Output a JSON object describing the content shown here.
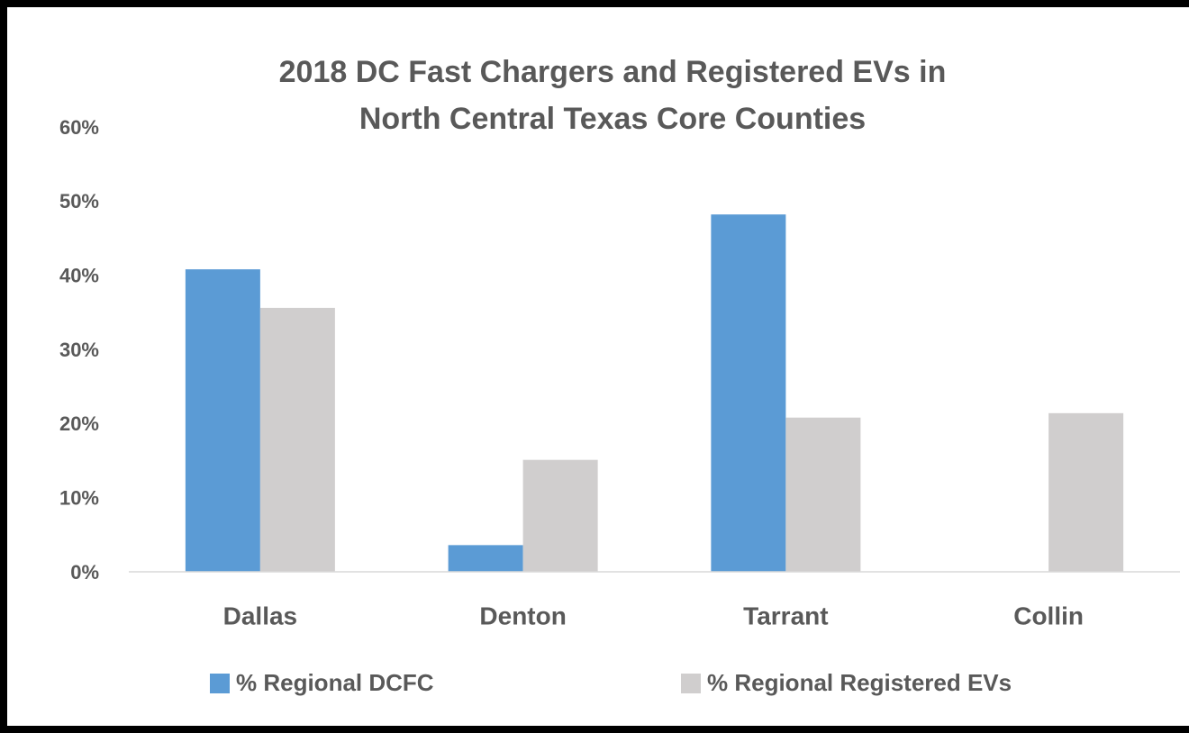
{
  "chart_data": {
    "type": "bar",
    "title": [
      "2018 DC Fast Chargers and Registered EVs in",
      "North Central Texas Core Counties"
    ],
    "categories": [
      "Dallas",
      "Denton",
      "Tarrant",
      "Collin"
    ],
    "series": [
      {
        "name": "% Regional DCFC",
        "color": "#5b9bd5",
        "values": [
          40.8,
          3.6,
          48.2,
          0
        ]
      },
      {
        "name": "% Regional Registered EVs",
        "color": "#d0cece",
        "values": [
          35.6,
          15.1,
          20.8,
          21.4
        ]
      }
    ],
    "ylim": [
      0,
      60
    ],
    "yticks": [
      {
        "value": 0,
        "label": "0%"
      },
      {
        "value": 10,
        "label": "10%"
      },
      {
        "value": 20,
        "label": "20%"
      },
      {
        "value": 30,
        "label": "30%"
      },
      {
        "value": 40,
        "label": "40%"
      },
      {
        "value": 50,
        "label": "50%"
      },
      {
        "value": 60,
        "label": "60%"
      }
    ],
    "grid": false,
    "legend": "bottom"
  }
}
